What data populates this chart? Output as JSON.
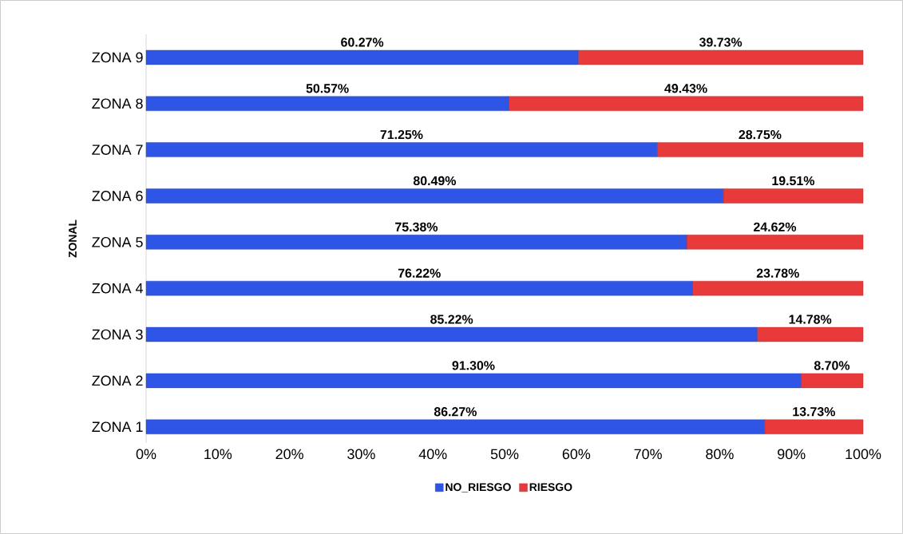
{
  "chart_data": {
    "type": "bar",
    "orientation": "horizontal",
    "stacked": true,
    "ylabel": "ZONAL",
    "categories": [
      "ZONA 9",
      "ZONA 8",
      "ZONA 7",
      "ZONA 6",
      "ZONA 5",
      "ZONA 4",
      "ZONA 3",
      "ZONA 2",
      "ZONA 1"
    ],
    "series": [
      {
        "name": "NO_RIESGO",
        "color": "#2f55e6",
        "values": [
          60.27,
          50.57,
          71.25,
          80.49,
          75.38,
          76.22,
          85.22,
          91.3,
          86.27
        ],
        "value_labels": [
          "60.27%",
          "50.57%",
          "71.25%",
          "80.49%",
          "75.38%",
          "76.22%",
          "85.22%",
          "91.30%",
          "86.27%"
        ]
      },
      {
        "name": "RIESGO",
        "color": "#e83a3a",
        "values": [
          39.73,
          49.43,
          28.75,
          19.51,
          24.62,
          23.78,
          14.78,
          8.7,
          13.73
        ],
        "value_labels": [
          "39.73%",
          "49.43%",
          "28.75%",
          "19.51%",
          "24.62%",
          "23.78%",
          "14.78%",
          "8.70%",
          "13.73%"
        ]
      }
    ],
    "xlim": [
      0,
      100
    ],
    "xticks": [
      {
        "value": 0,
        "label": "0%"
      },
      {
        "value": 10,
        "label": "10%"
      },
      {
        "value": 20,
        "label": "20%"
      },
      {
        "value": 30,
        "label": "30%"
      },
      {
        "value": 40,
        "label": "40%"
      },
      {
        "value": 50,
        "label": "50%"
      },
      {
        "value": 60,
        "label": "60%"
      },
      {
        "value": 70,
        "label": "70%"
      },
      {
        "value": 80,
        "label": "80%"
      },
      {
        "value": 90,
        "label": "90%"
      },
      {
        "value": 100,
        "label": "100%"
      }
    ],
    "legend": "bottom"
  }
}
